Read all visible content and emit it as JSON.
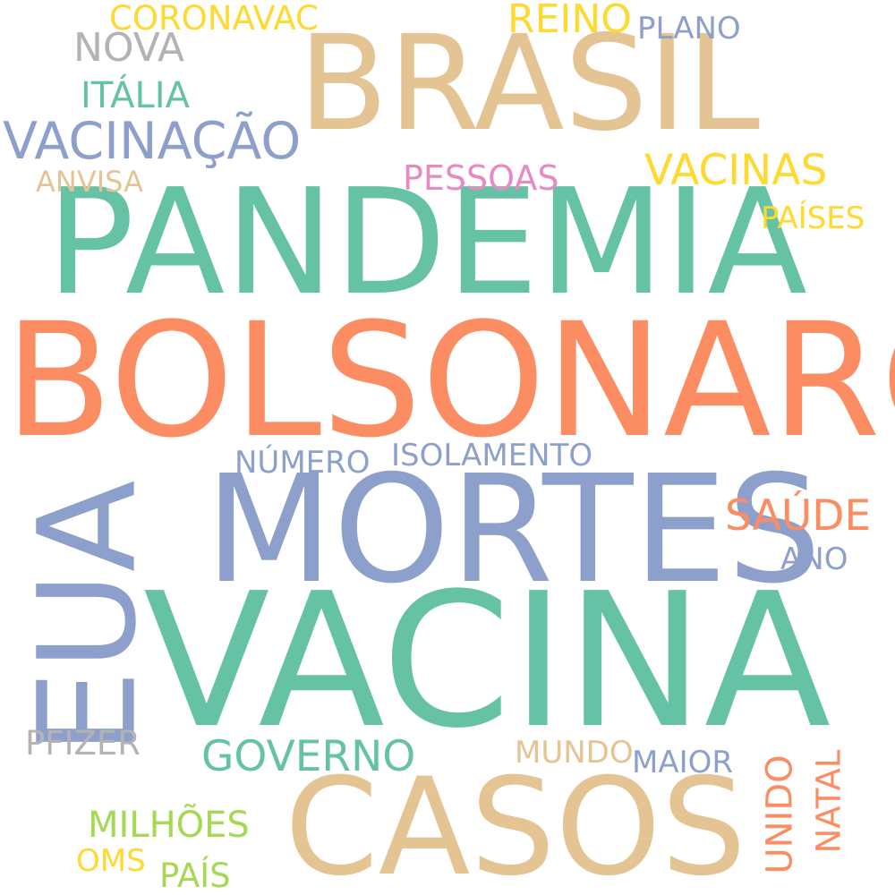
{
  "palette": {
    "teal": "#66c2a5",
    "orange": "#fc8d62",
    "blue": "#8da0cb",
    "pink": "#e78ac3",
    "lime": "#a6d854",
    "yellow": "#ffd92f",
    "tan": "#e5c494",
    "gray": "#b3b3b3"
  },
  "words": [
    {
      "id": "brasil",
      "text": "BRASIL",
      "color": "tan"
    },
    {
      "id": "pandemia",
      "text": "PANDEMIA",
      "color": "teal"
    },
    {
      "id": "bolsonaro",
      "text": "BOLSONARO",
      "color": "orange"
    },
    {
      "id": "mortes",
      "text": "MORTES",
      "color": "blue"
    },
    {
      "id": "vacina",
      "text": "VACINA",
      "color": "teal"
    },
    {
      "id": "casos",
      "text": "CASOS",
      "color": "tan"
    },
    {
      "id": "eua",
      "text": "EUA",
      "color": "blue"
    },
    {
      "id": "vacinacao",
      "text": "VACINAÇÃO",
      "color": "blue"
    },
    {
      "id": "vacinas",
      "text": "VACINAS",
      "color": "yellow"
    },
    {
      "id": "coronavac",
      "text": "CORONAVAC",
      "color": "yellow"
    },
    {
      "id": "reino",
      "text": "REINO",
      "color": "yellow"
    },
    {
      "id": "plano",
      "text": "PLANO",
      "color": "blue"
    },
    {
      "id": "nova",
      "text": "NOVA",
      "color": "gray"
    },
    {
      "id": "italia",
      "text": "ITÁLIA",
      "color": "teal"
    },
    {
      "id": "anvisa",
      "text": "ANVISA",
      "color": "tan"
    },
    {
      "id": "pessoas",
      "text": "PESSOAS",
      "color": "pink"
    },
    {
      "id": "paises",
      "text": "PAÍSES",
      "color": "yellow"
    },
    {
      "id": "numero",
      "text": "NÚMERO",
      "color": "blue"
    },
    {
      "id": "isolamento",
      "text": "ISOLAMENTO",
      "color": "blue"
    },
    {
      "id": "saude",
      "text": "SAÚDE",
      "color": "orange"
    },
    {
      "id": "ano",
      "text": "ANO",
      "color": "blue"
    },
    {
      "id": "pfizer",
      "text": "PFIZER",
      "color": "gray"
    },
    {
      "id": "governo",
      "text": "GOVERNO",
      "color": "teal"
    },
    {
      "id": "mundo",
      "text": "MUNDO",
      "color": "tan"
    },
    {
      "id": "maior",
      "text": "MAIOR",
      "color": "blue"
    },
    {
      "id": "milhoes",
      "text": "MILHÕES",
      "color": "lime"
    },
    {
      "id": "oms",
      "text": "OMS",
      "color": "yellow"
    },
    {
      "id": "pais",
      "text": "PAÍS",
      "color": "lime"
    },
    {
      "id": "unido",
      "text": "UNIDO",
      "color": "orange"
    },
    {
      "id": "natal",
      "text": "NATAL",
      "color": "orange"
    }
  ]
}
